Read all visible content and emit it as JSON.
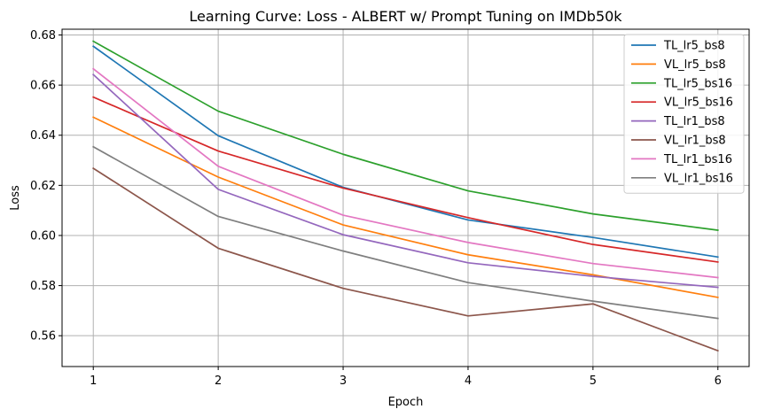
{
  "chart_data": {
    "type": "line",
    "title": "Learning Curve: Loss - ALBERT w/ Prompt Tuning on IMDb50k",
    "xlabel": "Epoch",
    "ylabel": "Loss",
    "x": [
      1,
      2,
      3,
      4,
      5,
      6
    ],
    "xticks": [
      "1",
      "2",
      "3",
      "4",
      "5",
      "6"
    ],
    "yticks": [
      "0.56",
      "0.58",
      "0.60",
      "0.62",
      "0.64",
      "0.66",
      "0.68"
    ],
    "xlim": [
      0.75,
      6.25
    ],
    "ylim": [
      0.5477,
      0.6823
    ],
    "grid": true,
    "legend_position": "top-right",
    "series": [
      {
        "name": "TL_lr5_bs8",
        "color": "#1f77b4",
        "values": [
          0.6755,
          0.6398,
          0.6192,
          0.6062,
          0.5992,
          0.5914
        ]
      },
      {
        "name": "VL_lr5_bs8",
        "color": "#ff7f0e",
        "values": [
          0.6472,
          0.6233,
          0.6042,
          0.5923,
          0.5843,
          0.5753
        ]
      },
      {
        "name": "TL_lr5_bs16",
        "color": "#2ca02c",
        "values": [
          0.6775,
          0.6496,
          0.6324,
          0.6178,
          0.6086,
          0.6021
        ]
      },
      {
        "name": "VL_lr5_bs16",
        "color": "#d62728",
        "values": [
          0.6552,
          0.6337,
          0.6189,
          0.6071,
          0.5964,
          0.5894
        ]
      },
      {
        "name": "TL_lr1_bs8",
        "color": "#9467bd",
        "values": [
          0.6642,
          0.6184,
          0.6003,
          0.5891,
          0.5837,
          0.5793
        ]
      },
      {
        "name": "VL_lr1_bs8",
        "color": "#8c564b",
        "values": [
          0.6268,
          0.5949,
          0.5789,
          0.5679,
          0.5727,
          0.554
        ]
      },
      {
        "name": "TL_lr1_bs16",
        "color": "#e377c2",
        "values": [
          0.6665,
          0.6276,
          0.6081,
          0.5972,
          0.5888,
          0.5832
        ]
      },
      {
        "name": "VL_lr1_bs16",
        "color": "#7f7f7f",
        "values": [
          0.6354,
          0.6076,
          0.5938,
          0.5812,
          0.5738,
          0.5669
        ]
      }
    ]
  }
}
